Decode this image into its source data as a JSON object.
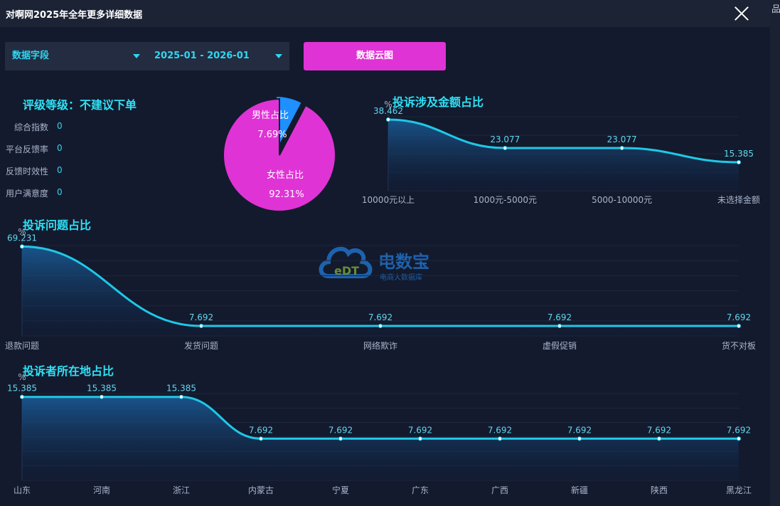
{
  "window": {
    "title": "对啊网2025年全年更多详细数据",
    "edge_text": "品"
  },
  "filters": {
    "field_label": "数据字段",
    "date_range": "2025-01 - 2026-01",
    "cloud_button": "数据云图"
  },
  "rating": {
    "title": "评级等级：不建议下单",
    "metrics": [
      {
        "label": "综合指数",
        "value": "0"
      },
      {
        "label": "平台反馈率",
        "value": "0"
      },
      {
        "label": "反馈时效性",
        "value": "0"
      },
      {
        "label": "用户满意度",
        "value": "0"
      }
    ]
  },
  "watermark": {
    "logo_text": "eDT",
    "name": "电数宝",
    "subtitle": "电商大数据库"
  },
  "chart_data": [
    {
      "id": "gender",
      "type": "pie",
      "title": "",
      "slices": [
        {
          "label": "男性占比",
          "value": 7.69,
          "display": "7.69%",
          "color": "#1e90ff"
        },
        {
          "label": "女性占比",
          "value": 92.31,
          "display": "92.31%",
          "color": "#e033d6"
        }
      ]
    },
    {
      "id": "amount",
      "type": "area",
      "title": "投诉涉及金额占比",
      "ylabel": "%",
      "categories": [
        "10000元以上",
        "1000元-5000元",
        "5000-10000元",
        "未选择金额"
      ],
      "values": [
        38.462,
        23.077,
        23.077,
        15.385
      ],
      "labels": [
        "38.462",
        "23.077",
        "23.077",
        "15.385"
      ],
      "ylim": [
        0,
        40
      ]
    },
    {
      "id": "issues",
      "type": "area",
      "title": "投诉问题占比",
      "ylabel": "%",
      "categories": [
        "退款问题",
        "发货问题",
        "网络欺诈",
        "虚假促销",
        "货不对板"
      ],
      "values": [
        69.231,
        7.692,
        7.692,
        7.692,
        7.692
      ],
      "labels": [
        "69.231",
        "7.692",
        "7.692",
        "7.692",
        "7.692"
      ],
      "ylim": [
        0,
        70
      ]
    },
    {
      "id": "regions",
      "type": "area",
      "title": "投诉者所在地占比",
      "ylabel": "%",
      "categories": [
        "山东",
        "河南",
        "浙江",
        "内蒙古",
        "宁夏",
        "广东",
        "广西",
        "新疆",
        "陕西",
        "黑龙江"
      ],
      "values": [
        15.385,
        15.385,
        15.385,
        7.692,
        7.692,
        7.692,
        7.692,
        7.692,
        7.692,
        7.692
      ],
      "labels": [
        "15.385",
        "15.385",
        "15.385",
        "7.692",
        "7.692",
        "7.692",
        "7.692",
        "7.692",
        "7.692",
        "7.692"
      ],
      "ylim": [
        0,
        16
      ]
    }
  ]
}
